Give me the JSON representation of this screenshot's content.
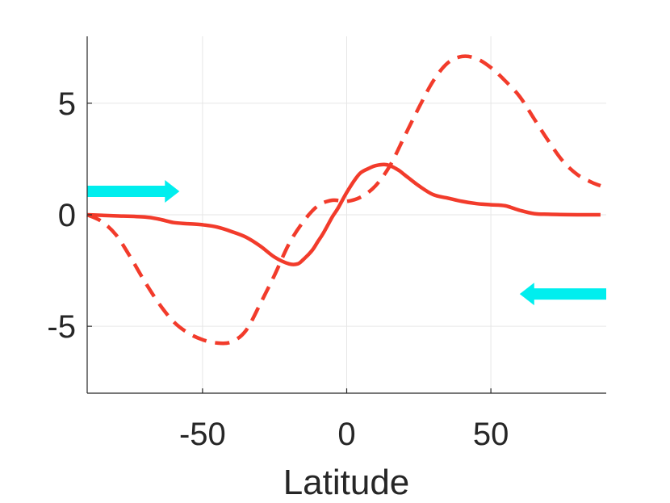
{
  "chart_data": {
    "type": "line",
    "title": "",
    "xlabel": "Latitude",
    "ylabel": "",
    "xlim": [
      -90,
      90
    ],
    "ylim": [
      -8,
      8
    ],
    "grid": true,
    "legend": "none",
    "x_ticks": [
      -50,
      0,
      50
    ],
    "y_ticks": [
      -5,
      0,
      5
    ],
    "x_tick_labels": [
      "-50",
      "0",
      "50"
    ],
    "y_tick_labels": [
      "-5",
      "0",
      "5"
    ],
    "colors": {
      "series": "#f23b2b",
      "arrow": "#00eeee",
      "axis": "#262626",
      "grid": "#e6e6e6"
    },
    "series": [
      {
        "style": "solid",
        "x": [
          -90,
          -80,
          -70,
          -65,
          -60,
          -55,
          -50,
          -45,
          -40,
          -35,
          -30,
          -25,
          -20,
          -17,
          -15,
          -12,
          -10,
          -8,
          -5,
          -3,
          0,
          3,
          5,
          8,
          10,
          13,
          15,
          18,
          20,
          25,
          30,
          35,
          40,
          45,
          50,
          55,
          60,
          65,
          70,
          80,
          88
        ],
        "y": [
          0,
          -0.05,
          -0.1,
          -0.2,
          -0.35,
          -0.4,
          -0.45,
          -0.55,
          -0.75,
          -1.0,
          -1.4,
          -1.9,
          -2.2,
          -2.2,
          -2.0,
          -1.6,
          -1.2,
          -0.8,
          -0.1,
          0.3,
          1.0,
          1.6,
          1.9,
          2.1,
          2.2,
          2.25,
          2.2,
          2.0,
          1.8,
          1.3,
          0.9,
          0.75,
          0.6,
          0.5,
          0.45,
          0.4,
          0.2,
          0.05,
          0.02,
          0,
          0
        ]
      },
      {
        "style": "dashed",
        "x": [
          -90,
          -85,
          -80,
          -75,
          -70,
          -65,
          -60,
          -55,
          -50,
          -45,
          -40,
          -35,
          -30,
          -25,
          -20,
          -15,
          -10,
          -5,
          0,
          5,
          10,
          15,
          20,
          25,
          30,
          35,
          40,
          45,
          50,
          55,
          60,
          65,
          70,
          75,
          80,
          85,
          88
        ],
        "y": [
          0,
          -0.3,
          -0.9,
          -1.9,
          -3.0,
          -4.0,
          -4.8,
          -5.3,
          -5.6,
          -5.75,
          -5.7,
          -5.2,
          -4.0,
          -2.7,
          -1.3,
          -0.3,
          0.4,
          0.65,
          0.6,
          0.8,
          1.3,
          2.2,
          3.5,
          4.8,
          6.0,
          6.8,
          7.1,
          7.0,
          6.6,
          6.0,
          5.3,
          4.3,
          3.3,
          2.4,
          1.8,
          1.45,
          1.3
        ]
      }
    ],
    "annotations": [
      {
        "type": "arrow",
        "direction": "right",
        "from": [
          -90,
          1.05
        ],
        "to": [
          -58,
          1.05
        ]
      },
      {
        "type": "arrow",
        "direction": "left",
        "from": [
          90,
          -3.55
        ],
        "to": [
          60,
          -3.55
        ]
      }
    ]
  }
}
